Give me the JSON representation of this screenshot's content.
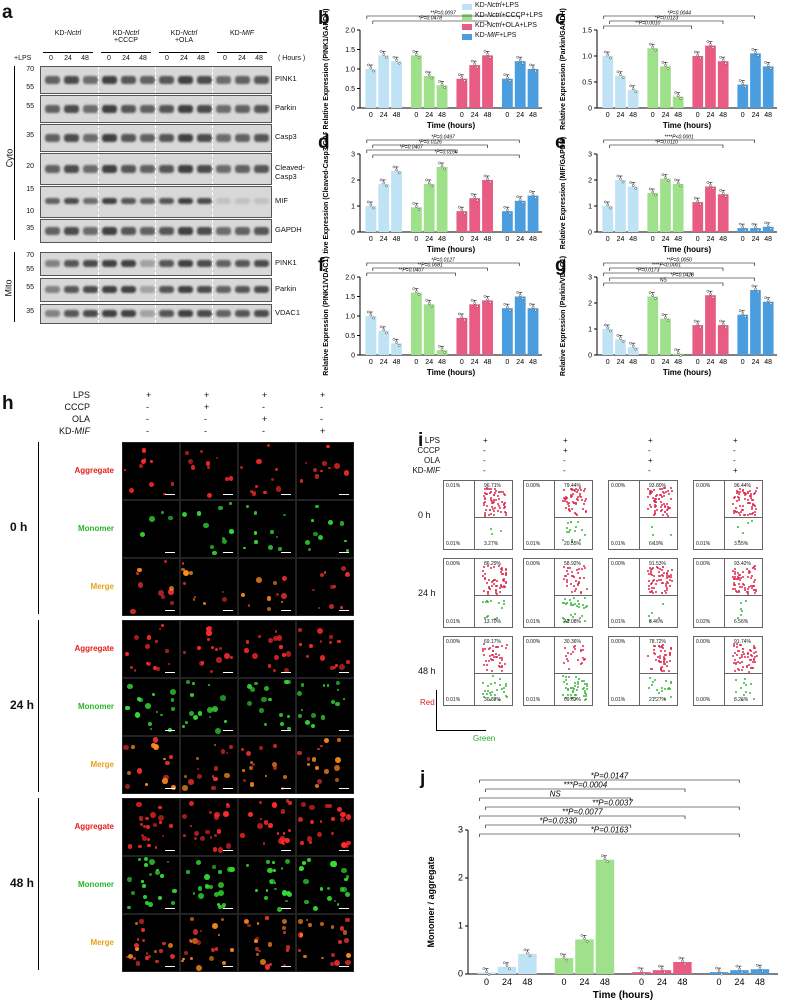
{
  "panel_labels": [
    "a",
    "b",
    "c",
    "d",
    "e",
    "f",
    "g",
    "h",
    "i",
    "j"
  ],
  "blot": {
    "lps_label": "+LPS",
    "hours_label": "( Hours )",
    "time_points": [
      "0",
      "24",
      "48"
    ],
    "groups": [
      {
        "prefix": "KD-",
        "italic": "Nctrl",
        "suffix": ""
      },
      {
        "prefix": "KD-",
        "italic": "Nctrl",
        "suffix": "+CCCP"
      },
      {
        "prefix": "KD-",
        "italic": "Nctrl",
        "suffix": "+OLA"
      },
      {
        "prefix": "KD-",
        "italic": "MIF",
        "suffix": ""
      }
    ],
    "cyto_label": "Cyto",
    "mito_label": "Mito",
    "cyto_rows": [
      {
        "name": "PINK1",
        "mw": [
          "70",
          "55"
        ]
      },
      {
        "name": "Parkin",
        "mw": [
          "55"
        ]
      },
      {
        "name": "Casp3",
        "mw": [
          "35"
        ]
      },
      {
        "name": "Cleaved-Casp3",
        "mw": [
          "20"
        ]
      },
      {
        "name": "MIF",
        "mw": [
          "15",
          "10"
        ]
      },
      {
        "name": "GAPDH",
        "mw": [
          "35"
        ]
      }
    ],
    "mito_rows": [
      {
        "name": "PINK1",
        "mw": [
          "70",
          "55"
        ]
      },
      {
        "name": "Parkin",
        "mw": [
          "55"
        ]
      },
      {
        "name": "VDAC1",
        "mw": [
          "35"
        ]
      }
    ]
  },
  "legend": [
    {
      "label": "KD-Nctrl+LPS",
      "color": "#bfe3f5"
    },
    {
      "label": "KD-Nctrl+CCCP+LPS",
      "color": "#9fe08a"
    },
    {
      "label": "KD-Nctrl+OLA+LPS",
      "color": "#e85c84"
    },
    {
      "label": "KD-MIF+LPS",
      "color": "#4a9ee0"
    }
  ],
  "bar_charts_common": {
    "xlabel": "Time (hours)",
    "categories": [
      "0",
      "24",
      "48"
    ]
  },
  "chart_data": [
    {
      "id": "b",
      "type": "bar",
      "ylabel": "Relative Expression (PINK1/GAPDH)",
      "ylim": [
        0,
        2
      ],
      "yticks": [
        "0",
        "0.5",
        "1.0",
        "1.5",
        "2.0"
      ],
      "series": [
        [
          1.0,
          1.35,
          1.2
        ],
        [
          1.35,
          0.82,
          0.58
        ],
        [
          0.75,
          1.1,
          1.35
        ],
        [
          0.75,
          1.2,
          1.0
        ]
      ],
      "annotations": [
        "**P=0.0097",
        "*P=0.0478"
      ]
    },
    {
      "id": "c",
      "type": "bar",
      "ylabel": "Relative Expression (Parkin/GAPDH)",
      "ylim": [
        0,
        1.5
      ],
      "yticks": [
        "0",
        "0.5",
        "1.0",
        "1.5"
      ],
      "series": [
        [
          1.0,
          0.62,
          0.35
        ],
        [
          1.15,
          0.8,
          0.22
        ],
        [
          1.0,
          1.2,
          0.9
        ],
        [
          0.45,
          1.05,
          0.8
        ]
      ],
      "annotations": [
        "*P=0.0044",
        "*P=0.0123",
        "**P=0.0010"
      ]
    },
    {
      "id": "d",
      "type": "bar",
      "ylabel": "Relative Expression (Cleaved-Casp3/GAPDH)",
      "ylim": [
        0,
        3
      ],
      "yticks": [
        "0",
        "1",
        "2",
        "3"
      ],
      "series": [
        [
          1.0,
          1.85,
          2.35
        ],
        [
          0.95,
          1.85,
          2.5
        ],
        [
          0.8,
          1.3,
          2.0
        ],
        [
          0.8,
          1.2,
          1.4
        ]
      ],
      "annotations": [
        "*P=0.0497",
        "*P=0.0126",
        "*P=0.0407",
        "*P=0.0164"
      ]
    },
    {
      "id": "e",
      "type": "bar",
      "ylabel": "Relative Expression (MIF/GAPDH)",
      "ylim": [
        0,
        3
      ],
      "yticks": [
        "0",
        "1",
        "2",
        "3"
      ],
      "series": [
        [
          1.0,
          2.0,
          1.75
        ],
        [
          1.5,
          2.05,
          1.85
        ],
        [
          1.15,
          1.75,
          1.45
        ],
        [
          0.15,
          0.15,
          0.2
        ]
      ],
      "annotations": [
        "****P<0.0001",
        "*P=0.0110"
      ]
    },
    {
      "id": "f",
      "type": "bar",
      "ylabel": "Relative Expression (PINK1/VDAC1)",
      "ylim": [
        0,
        2
      ],
      "yticks": [
        "0",
        "0.5",
        "1.0",
        "1.5",
        "2.0"
      ],
      "series": [
        [
          1.0,
          0.62,
          0.3
        ],
        [
          1.6,
          1.3,
          0.12
        ],
        [
          0.95,
          1.3,
          1.4
        ],
        [
          1.2,
          1.5,
          1.2
        ]
      ],
      "annotations": [
        "*P=0.0127",
        "**P=0.0081",
        "**P=0.0407"
      ]
    },
    {
      "id": "g",
      "type": "bar",
      "ylabel": "Relative Expression (Parkin/VDAC1)",
      "ylim": [
        0,
        3
      ],
      "yticks": [
        "0",
        "1",
        "2",
        "3"
      ],
      "series": [
        [
          1.0,
          0.6,
          0.3
        ],
        [
          2.25,
          1.4,
          0.05
        ],
        [
          1.15,
          2.3,
          1.15
        ],
        [
          1.55,
          2.5,
          2.05
        ]
      ],
      "annotations": [
        "**P=0.0050",
        "****P<0.0001",
        "*P=0.0173",
        "*P=0.0428",
        "NS"
      ]
    },
    {
      "id": "j",
      "type": "bar",
      "ylabel": "Monomer / aggregate",
      "xlabel": "Time (hours)",
      "ylim": [
        0,
        3
      ],
      "yticks": [
        "0",
        "1",
        "2",
        "3"
      ],
      "series": [
        [
          0.03,
          0.15,
          0.42
        ],
        [
          0.33,
          0.72,
          2.38
        ],
        [
          0.04,
          0.08,
          0.25
        ],
        [
          0.04,
          0.08,
          0.1
        ]
      ],
      "annotations": [
        "*P=0.0147",
        "***P=0.0004",
        "NS",
        "**P=0.0037",
        "**P=0.0077",
        "*P=0.0330",
        "*P=0.0163"
      ]
    }
  ],
  "panel_h": {
    "conditions": [
      {
        "label": "LPS",
        "values": [
          "+",
          "+",
          "+",
          "+"
        ]
      },
      {
        "label": "CCCP",
        "values": [
          "-",
          "+",
          "-",
          "-"
        ]
      },
      {
        "label": "OLA",
        "values": [
          "-",
          "-",
          "+",
          "-"
        ]
      },
      {
        "label": "KD-MIF",
        "values": [
          "-",
          "-",
          "-",
          "+"
        ]
      }
    ],
    "channels": [
      {
        "label": "Aggregate",
        "color": "#e02020"
      },
      {
        "label": "Monomer",
        "color": "#2ab52a"
      },
      {
        "label": "Merge",
        "color": "#e8a21a"
      }
    ],
    "times": [
      "0 h",
      "24 h",
      "48 h"
    ]
  },
  "panel_i": {
    "conditions": [
      {
        "label": "LPS",
        "values": [
          "+",
          "+",
          "+",
          "+"
        ]
      },
      {
        "label": "CCCP",
        "values": [
          "-",
          "+",
          "-",
          "-"
        ]
      },
      {
        "label": "OLA",
        "values": [
          "-",
          "-",
          "+",
          "-"
        ]
      },
      {
        "label": "KD-MIF",
        "values": [
          "-",
          "-",
          "-",
          "+"
        ]
      }
    ],
    "times": [
      "0 h",
      "24 h",
      "48 h"
    ],
    "axis_red": "Red",
    "axis_green": "Green",
    "upper_pct": [
      [
        "96.71%",
        "79.44%",
        "93.80%",
        "96.44%"
      ],
      [
        "86.29%",
        "58.92%",
        "91.53%",
        "93.42%"
      ],
      [
        "69.17%",
        "30.36%",
        "78.72%",
        "91.74%"
      ]
    ],
    "lower_pct": [
      [
        "3.27%",
        "20.55%",
        "6.19%",
        "3.55%"
      ],
      [
        "13.70%",
        "41.08%",
        "8.46%",
        "6.56%"
      ],
      [
        "30.82%",
        "69.62%",
        "21.27%",
        "8.26%"
      ]
    ],
    "upper_left": [
      [
        "0.01%",
        "0.00%",
        "0.00%",
        "0.00%"
      ],
      [
        "0.00%",
        "0.00%",
        "0.00%",
        "0.00%"
      ],
      [
        "0.00%",
        "0.00%",
        "0.00%",
        "0.00%"
      ]
    ],
    "lower_left": [
      [
        "0.01%",
        "0.01%",
        "0.01%",
        "0.01%"
      ],
      [
        "0.01%",
        "0.01%",
        "0.01%",
        "0.02%"
      ],
      [
        "0.01%",
        "0.01%",
        "0.01%",
        "0.00%"
      ]
    ]
  }
}
